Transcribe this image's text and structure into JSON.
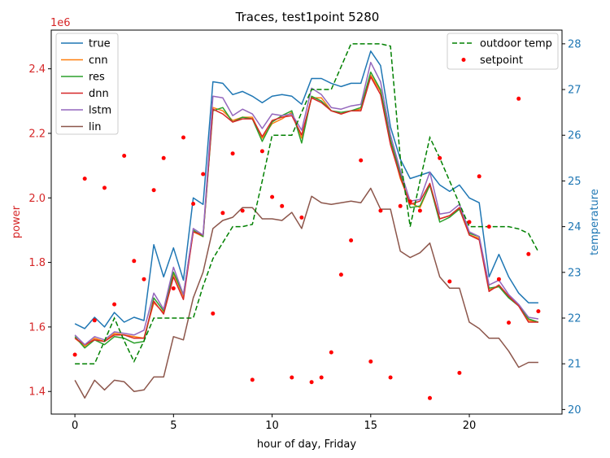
{
  "chart_data": {
    "type": "line",
    "title": "Traces, test1point 5280",
    "xlabel": "hour of day, Friday",
    "ylabel_left": "power",
    "ylabel_right": "temperature",
    "y_left_offset": "1e6",
    "left_axis_color": "#d62728",
    "right_axis_color": "#1f77b4",
    "xlim": [
      -1.2,
      24.7
    ],
    "ylim_left": [
      1.33,
      2.52
    ],
    "ylim_right": [
      19.9,
      28.3
    ],
    "x_ticks": [
      0,
      5,
      10,
      15,
      20
    ],
    "x_tick_labels": [
      "0",
      "5",
      "10",
      "15",
      "20"
    ],
    "y_left_ticks": [
      1.4,
      1.6,
      1.8,
      2.0,
      2.2,
      2.4
    ],
    "y_left_tick_labels": [
      "1.4",
      "1.6",
      "1.8",
      "2.0",
      "2.2",
      "2.4"
    ],
    "y_right_ticks": [
      20,
      21,
      22,
      23,
      24,
      25,
      26,
      27,
      28
    ],
    "y_right_tick_labels": [
      "20",
      "21",
      "22",
      "23",
      "24",
      "25",
      "26",
      "27",
      "28"
    ],
    "legend_left_position": "upper-left",
    "legend_right_position": "upper-right",
    "grid": false,
    "x": [
      0,
      0.5,
      1,
      1.5,
      2,
      2.5,
      3,
      3.5,
      4,
      4.5,
      5,
      5.5,
      6,
      6.5,
      7,
      7.5,
      8,
      8.5,
      9,
      9.5,
      10,
      10.5,
      11,
      11.5,
      12,
      12.5,
      13,
      13.5,
      14,
      14.5,
      15,
      15.5,
      16,
      16.5,
      17,
      17.5,
      18,
      18.5,
      19,
      19.5,
      20,
      20.5,
      21,
      21.5,
      22,
      22.5,
      23,
      23.5
    ],
    "series": [
      {
        "name": "true",
        "color": "#1f77b4",
        "axis": "left",
        "values": [
          1.61,
          1.595,
          1.63,
          1.6,
          1.645,
          1.615,
          1.63,
          1.62,
          1.855,
          1.755,
          1.845,
          1.745,
          2.0,
          1.98,
          2.36,
          2.355,
          2.32,
          2.33,
          2.315,
          2.295,
          2.315,
          2.32,
          2.315,
          2.29,
          2.37,
          2.37,
          2.355,
          2.345,
          2.355,
          2.355,
          2.455,
          2.41,
          2.22,
          2.12,
          2.06,
          2.07,
          2.08,
          2.04,
          2.02,
          2.04,
          2.0,
          1.985,
          1.755,
          1.825,
          1.755,
          1.705,
          1.675,
          1.675
        ]
      },
      {
        "name": "cnn",
        "color": "#ff7f0e",
        "axis": "left",
        "values": [
          1.565,
          1.54,
          1.565,
          1.555,
          1.58,
          1.575,
          1.57,
          1.565,
          1.675,
          1.645,
          1.765,
          1.695,
          1.895,
          1.88,
          2.28,
          2.27,
          2.24,
          2.25,
          2.25,
          2.185,
          2.23,
          2.245,
          2.265,
          2.185,
          2.31,
          2.31,
          2.27,
          2.26,
          2.27,
          2.275,
          2.38,
          2.33,
          2.175,
          2.06,
          1.985,
          1.97,
          2.04,
          1.935,
          1.945,
          1.965,
          1.885,
          1.875,
          1.715,
          1.725,
          1.695,
          1.665,
          1.62,
          1.615
        ]
      },
      {
        "name": "res",
        "color": "#2ca02c",
        "axis": "left",
        "values": [
          1.57,
          1.535,
          1.56,
          1.545,
          1.57,
          1.565,
          1.55,
          1.555,
          1.69,
          1.65,
          1.77,
          1.7,
          1.9,
          1.88,
          2.27,
          2.28,
          2.235,
          2.25,
          2.245,
          2.175,
          2.235,
          2.255,
          2.27,
          2.17,
          2.315,
          2.3,
          2.27,
          2.265,
          2.27,
          2.28,
          2.39,
          2.335,
          2.18,
          2.075,
          1.97,
          1.975,
          2.04,
          1.925,
          1.94,
          1.965,
          1.89,
          1.88,
          1.72,
          1.725,
          1.69,
          1.665,
          1.625,
          1.615
        ]
      },
      {
        "name": "dnn",
        "color": "#d62728",
        "axis": "left",
        "values": [
          1.565,
          1.545,
          1.56,
          1.555,
          1.575,
          1.575,
          1.565,
          1.565,
          1.68,
          1.64,
          1.755,
          1.685,
          1.895,
          1.885,
          2.275,
          2.26,
          2.235,
          2.245,
          2.245,
          2.19,
          2.24,
          2.25,
          2.255,
          2.195,
          2.31,
          2.295,
          2.27,
          2.26,
          2.27,
          2.27,
          2.375,
          2.32,
          2.165,
          2.065,
          1.98,
          1.99,
          2.045,
          1.935,
          1.945,
          1.97,
          1.885,
          1.87,
          1.71,
          1.73,
          1.695,
          1.665,
          1.615,
          1.615
        ]
      },
      {
        "name": "lstm",
        "color": "#9467bd",
        "axis": "left",
        "values": [
          1.575,
          1.545,
          1.57,
          1.56,
          1.585,
          1.58,
          1.575,
          1.59,
          1.705,
          1.655,
          1.785,
          1.7,
          1.905,
          1.885,
          2.315,
          2.31,
          2.255,
          2.275,
          2.26,
          2.215,
          2.26,
          2.255,
          2.26,
          2.21,
          2.34,
          2.32,
          2.28,
          2.275,
          2.285,
          2.29,
          2.42,
          2.36,
          2.195,
          2.085,
          1.99,
          1.995,
          2.08,
          1.95,
          1.955,
          1.98,
          1.895,
          1.88,
          1.73,
          1.745,
          1.7,
          1.67,
          1.63,
          1.625
        ]
      },
      {
        "name": "lin",
        "color": "#8c564b",
        "axis": "left",
        "values": [
          1.435,
          1.38,
          1.435,
          1.405,
          1.435,
          1.43,
          1.4,
          1.405,
          1.445,
          1.445,
          1.57,
          1.56,
          1.69,
          1.77,
          1.905,
          1.93,
          1.94,
          1.97,
          1.97,
          1.935,
          1.935,
          1.93,
          1.955,
          1.905,
          2.005,
          1.985,
          1.98,
          1.985,
          1.99,
          1.985,
          2.03,
          1.965,
          1.965,
          1.835,
          1.815,
          1.83,
          1.86,
          1.755,
          1.72,
          1.72,
          1.615,
          1.595,
          1.565,
          1.565,
          1.525,
          1.475,
          1.49,
          1.49
        ]
      }
    ],
    "secondary_series": [
      {
        "name": "outdoor temp",
        "color": "#008000",
        "axis": "right",
        "style": "dashed",
        "x": [
          0,
          0.5,
          1,
          1.5,
          2,
          2.5,
          3,
          3.5,
          4,
          4.5,
          5,
          5.5,
          6,
          6.5,
          7,
          7.5,
          8,
          8.5,
          9,
          9.5,
          10,
          10.5,
          11,
          11.5,
          12,
          12.5,
          13,
          13.5,
          14,
          14.5,
          15,
          15.5,
          16,
          16.5,
          17,
          17.5,
          18,
          18.5,
          19,
          19.5,
          20,
          20.5,
          21,
          21.5,
          22,
          22.5,
          23,
          23.5
        ],
        "values": [
          21.0,
          21.0,
          21.0,
          21.5,
          22.0,
          21.5,
          21.05,
          21.5,
          22.0,
          22.0,
          22.0,
          22.0,
          22.0,
          22.7,
          23.3,
          23.65,
          24.0,
          24.0,
          24.05,
          25.0,
          26.0,
          26.0,
          26.0,
          26.5,
          27.0,
          27.0,
          27.0,
          27.5,
          28.0,
          28.0,
          28.0,
          28.0,
          27.95,
          25.5,
          24.0,
          25.0,
          25.95,
          25.5,
          25.0,
          24.5,
          24.0,
          24.0,
          24.0,
          24.0,
          24.0,
          23.95,
          23.85,
          23.45
        ]
      },
      {
        "name": "setpoint",
        "color": "#ff0000",
        "axis": "right",
        "style": "dots",
        "x": [
          0,
          0.5,
          1,
          1.5,
          2,
          2.5,
          3,
          3.5,
          4,
          4.5,
          5,
          5.5,
          6,
          6.5,
          7,
          7.5,
          8,
          8.5,
          9,
          9.5,
          10,
          10.5,
          11,
          11.5,
          12,
          12.5,
          13,
          13.5,
          14,
          14.5,
          15,
          15.5,
          16,
          16.5,
          17,
          17.5,
          18,
          18.5,
          19,
          19.5,
          20,
          20.5,
          21,
          21.5,
          22,
          22.5,
          23,
          23.5
        ],
        "values": [
          21.2,
          25.05,
          21.95,
          24.85,
          22.3,
          25.55,
          23.25,
          22.85,
          24.8,
          25.5,
          22.65,
          25.95,
          24.5,
          25.15,
          22.1,
          24.3,
          25.6,
          24.35,
          20.65,
          25.65,
          24.65,
          24.45,
          20.7,
          24.2,
          20.6,
          20.7,
          21.25,
          22.95,
          23.7,
          25.45,
          21.05,
          24.35,
          20.7,
          24.45,
          24.55,
          24.35,
          20.25,
          25.5,
          22.8,
          20.8,
          24.1,
          25.1,
          24.0,
          22.85,
          21.9,
          26.8,
          23.4,
          22.15
        ]
      }
    ]
  }
}
